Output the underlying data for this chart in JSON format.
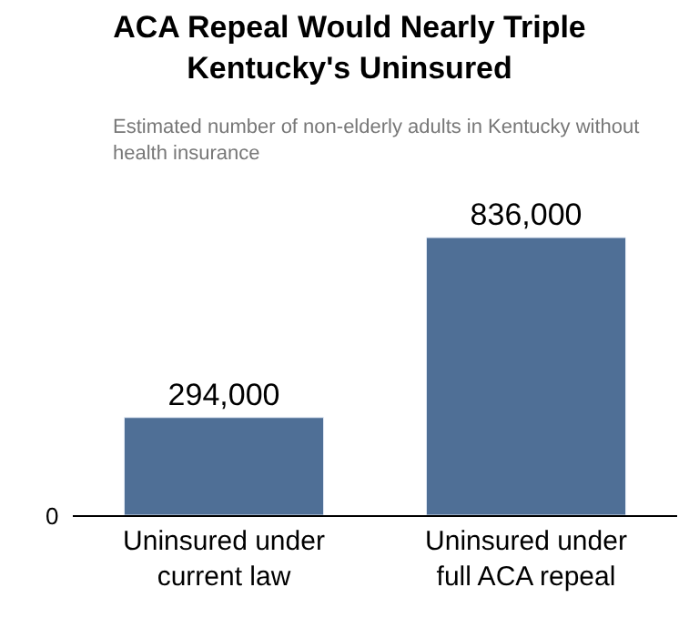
{
  "chart_data": {
    "type": "bar",
    "title": "ACA Repeal Would Nearly Triple Kentucky's Uninsured",
    "subtitle": "Estimated number of non-elderly adults in Kentucky without health insurance",
    "categories": [
      "Uninsured under current law",
      "Uninsured under full ACA repeal"
    ],
    "values": [
      294000,
      836000
    ],
    "value_labels": [
      "294,000",
      "836,000"
    ],
    "color": "#4f6f96",
    "annotations": [
      "0"
    ],
    "legend": false
  }
}
